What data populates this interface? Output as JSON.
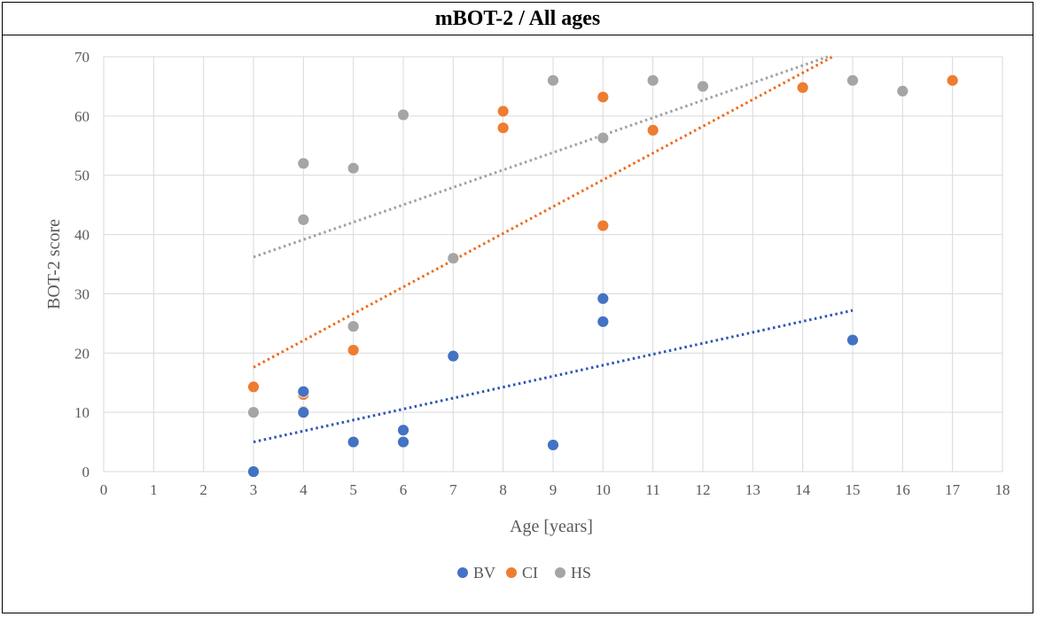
{
  "chart_data": {
    "type": "scatter",
    "title": "mBOT-2 / All ages",
    "xlabel": "Age [years]",
    "ylabel": "BOT-2 score",
    "xlim": [
      0,
      18
    ],
    "ylim": [
      0,
      70
    ],
    "xticks": [
      "0",
      "1",
      "2",
      "3",
      "4",
      "5",
      "6",
      "7",
      "8",
      "9",
      "10",
      "11",
      "12",
      "13",
      "14",
      "15",
      "16",
      "17",
      "18"
    ],
    "yticks": [
      "0",
      "10",
      "20",
      "30",
      "40",
      "50",
      "60",
      "70"
    ],
    "grid": true,
    "legend_position": "bottom",
    "series": [
      {
        "name": "BV",
        "color": "#4472c4",
        "trend_color": "#2f55b4",
        "points": [
          [
            3,
            0
          ],
          [
            4,
            13.5
          ],
          [
            4,
            10
          ],
          [
            5,
            5
          ],
          [
            6,
            7
          ],
          [
            6,
            5
          ],
          [
            7,
            19.5
          ],
          [
            9,
            4.5
          ],
          [
            10,
            29.2
          ],
          [
            10,
            25.3
          ],
          [
            15,
            22.2
          ]
        ],
        "trendline": [
          [
            3,
            5
          ],
          [
            15,
            27.2
          ]
        ]
      },
      {
        "name": "CI",
        "color": "#ed7d31",
        "trend_color": "#ed6a1a",
        "points": [
          [
            3,
            14.3
          ],
          [
            4,
            13
          ],
          [
            4,
            10.2
          ],
          [
            5,
            20.5
          ],
          [
            8,
            60.8
          ],
          [
            8,
            58
          ],
          [
            10,
            63.2
          ],
          [
            10,
            41.5
          ],
          [
            11,
            57.6
          ],
          [
            14,
            64.8
          ],
          [
            17,
            66
          ]
        ],
        "trendline": [
          [
            3,
            17.6
          ],
          [
            14.6,
            70
          ]
        ]
      },
      {
        "name": "HS",
        "color": "#a5a5a5",
        "trend_color": "#a0a0a0",
        "points": [
          [
            3,
            10
          ],
          [
            4,
            52
          ],
          [
            4,
            42.5
          ],
          [
            5,
            51.2
          ],
          [
            5,
            24.5
          ],
          [
            6,
            60.2
          ],
          [
            7,
            36
          ],
          [
            9,
            66
          ],
          [
            10,
            56.3
          ],
          [
            11,
            66
          ],
          [
            12,
            65
          ],
          [
            15,
            66
          ],
          [
            16,
            64.2
          ]
        ],
        "trendline": [
          [
            3,
            36.2
          ],
          [
            14.5,
            70
          ]
        ]
      }
    ]
  }
}
